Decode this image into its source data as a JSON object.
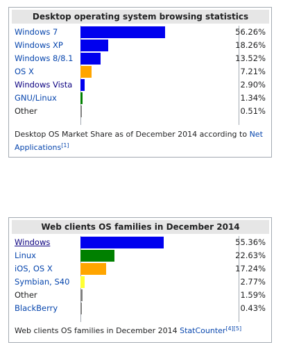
{
  "table1": {
    "title": "Desktop operating system browsing statistics",
    "rows": [
      {
        "name": "Windows 7",
        "value": 56.26,
        "pct": "56.26%",
        "color": "#0000ee"
      },
      {
        "name": "Windows XP",
        "value": 18.26,
        "pct": "18.26%",
        "color": "#0000ee"
      },
      {
        "name": "Windows 8/8.1",
        "value": 13.52,
        "pct": "13.52%",
        "color": "#0000ee"
      },
      {
        "name": "OS X",
        "value": 7.21,
        "pct": "7.21%",
        "color": "#ffa500"
      },
      {
        "name": "Windows Vista",
        "value": 2.9,
        "pct": "2.90%",
        "color": "#0000ee"
      },
      {
        "name": "GNU/Linux",
        "value": 1.34,
        "pct": "1.34%",
        "color": "#008000"
      },
      {
        "name": "Other",
        "value": 0.51,
        "pct": "0.51%",
        "color": "#808080"
      }
    ],
    "note": {
      "text": "Desktop OS Market Share as of December 2014 according to ",
      "link": "Net Applications",
      "ref": "[1]"
    }
  },
  "table2": {
    "title": "Web clients OS families in December 2014",
    "rows": [
      {
        "name": "Windows",
        "value": 55.36,
        "pct": "55.36%",
        "color": "#0000ee"
      },
      {
        "name": "Linux",
        "value": 22.63,
        "pct": "22.63%",
        "color": "#008000"
      },
      {
        "name": "iOS, OS X",
        "value": 17.24,
        "pct": "17.24%",
        "color": "#ffa500"
      },
      {
        "name": "Symbian, S40",
        "value": 2.77,
        "pct": "2.77%",
        "color": "#ffff33"
      },
      {
        "name": "Other",
        "value": 1.59,
        "pct": "1.59%",
        "color": "#808080"
      },
      {
        "name": "BlackBerry",
        "value": 0.43,
        "pct": "0.43%",
        "color": "#808080"
      }
    ],
    "note": {
      "text": "Web clients OS families in December 2014 ",
      "link": "StatCounter",
      "ref": "[4][5]"
    }
  }
}
